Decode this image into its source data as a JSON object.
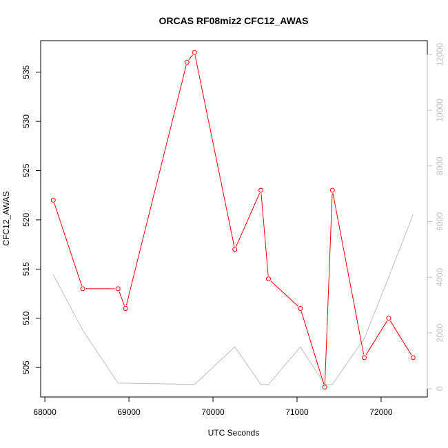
{
  "chart_data": {
    "type": "line",
    "title": "ORCAS RF08miz2 CFC12_AWAS",
    "xlabel": "UTC Seconds",
    "ylabel": "CFC12_AWAS",
    "x_ticks": [
      "68000",
      "69000",
      "70000",
      "71000",
      "72000"
    ],
    "y_ticks": [
      "505",
      "510",
      "515",
      "520",
      "525",
      "530",
      "535"
    ],
    "y2_ticks": [
      "0",
      "2000",
      "4000",
      "6000",
      "8000",
      "10000",
      "12000"
    ],
    "xlim": [
      67950,
      72550
    ],
    "ylim": [
      502.0,
      538.2
    ],
    "y2lim": [
      -300,
      12500
    ],
    "colors": {
      "primary": "#ff0000",
      "secondary": "#bebebe",
      "axis_right": "#bfbfbf"
    },
    "series": [
      {
        "axis": "left",
        "color": "#ff0000",
        "markers": "open-circle",
        "x": [
          68100,
          68450,
          68870,
          68960,
          69690,
          69780,
          70260,
          70570,
          70660,
          71040,
          71330,
          71420,
          71800,
          72090,
          72380
        ],
        "y": [
          522,
          513,
          513,
          511,
          536,
          537,
          517,
          523,
          514,
          511,
          503,
          523,
          506,
          510,
          506
        ]
      },
      {
        "axis": "right",
        "color": "#bebebe",
        "markers": "none",
        "x": [
          68100,
          68450,
          68870,
          69780,
          70260,
          70570,
          70660,
          71040,
          71330,
          71420,
          71800,
          72090,
          72380
        ],
        "y": [
          4100,
          2100,
          200,
          150,
          1500,
          150,
          150,
          1500,
          150,
          150,
          1800,
          4000,
          6250
        ]
      }
    ]
  }
}
